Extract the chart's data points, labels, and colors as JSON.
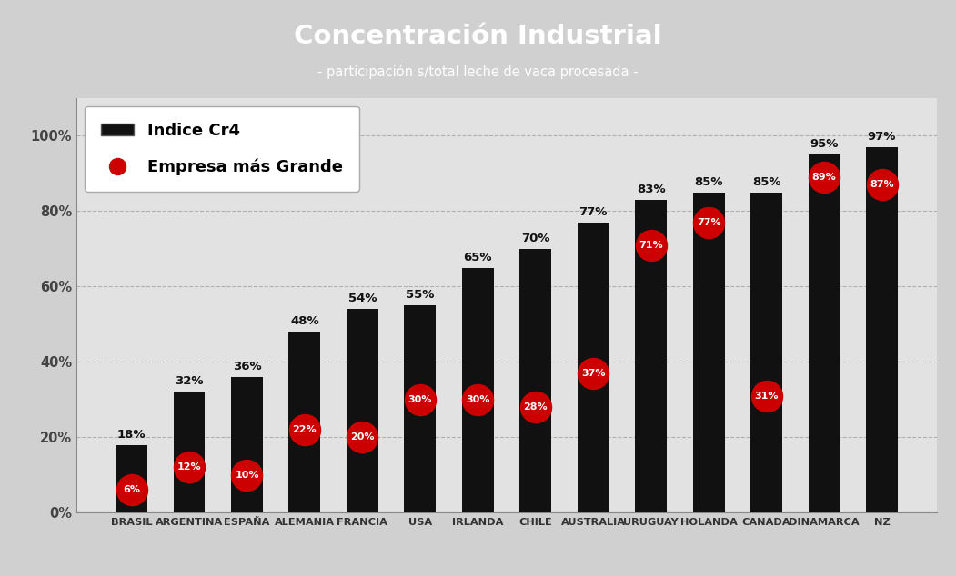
{
  "categories": [
    "BRASIL",
    "ARGENTINA",
    "ESPAÑA",
    "ALEMANIA",
    "FRANCIA",
    "USA",
    "IRLANDA",
    "CHILE",
    "AUSTRALIA",
    "URUGUAY",
    "HOLANDA",
    "CANADA",
    "DINAMARCA",
    "NZ"
  ],
  "cr4_values": [
    18,
    32,
    36,
    48,
    54,
    55,
    65,
    70,
    77,
    83,
    85,
    85,
    95,
    97
  ],
  "empresa_values": [
    6,
    12,
    10,
    22,
    20,
    30,
    30,
    28,
    37,
    71,
    77,
    31,
    89,
    87
  ],
  "bar_color": "#111111",
  "empresa_color": "#cc0000",
  "empresa_text_color": "#ffffff",
  "title": "Concentración Industrial",
  "subtitle": "- participación s/total leche de vaca procesada -",
  "title_box_color": "#1b2d50",
  "title_text_color": "#ffffff",
  "bg_color": "#d0d0d0",
  "plot_bg_color": "#e2e2e2",
  "legend_cr4": "Indice Cr4",
  "legend_empresa": "Empresa más Grande",
  "ylim": [
    0,
    110
  ],
  "yticks": [
    0,
    20,
    40,
    60,
    80,
    100
  ],
  "ytick_labels": [
    "0%",
    "20%",
    "40%",
    "60%",
    "80%",
    "100%"
  ]
}
